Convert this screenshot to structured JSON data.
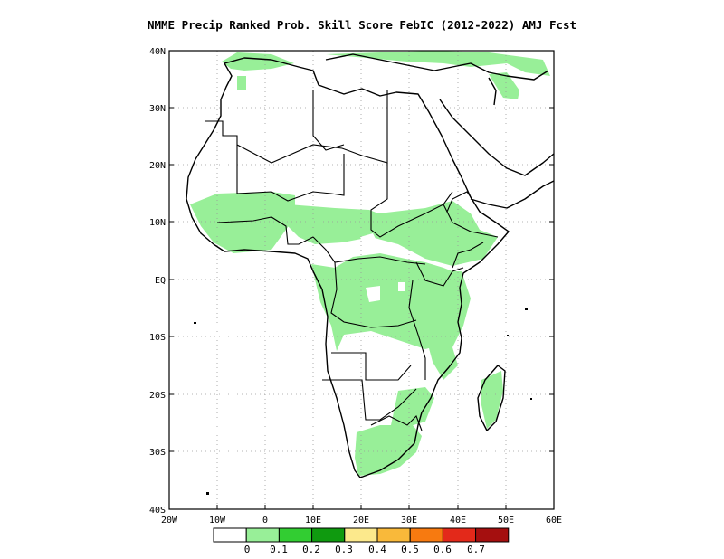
{
  "title": "NMME Precip Ranked Prob. Skill Score FebIC (2012-2022) AMJ Fcst",
  "map": {
    "region": "Africa",
    "lon_range": [
      -20,
      60
    ],
    "lat_range": [
      -40,
      40
    ],
    "grid": true,
    "lat_ticks": [
      "40N",
      "30N",
      "20N",
      "10N",
      "EQ",
      "10S",
      "20S",
      "30S",
      "40S"
    ],
    "lon_ticks": [
      "20W",
      "10W",
      "0",
      "10E",
      "20E",
      "30E",
      "40E",
      "50E",
      "60E"
    ],
    "skill_color": "#98ef98"
  },
  "colorbar": {
    "colors": [
      "#ffffff",
      "#98ef98",
      "#32cd32",
      "#0f9a0f",
      "#fce98c",
      "#f9b93a",
      "#f77a10",
      "#e3291a",
      "#a50f0f"
    ],
    "labels": [
      "0",
      "0.1",
      "0.2",
      "0.3",
      "0.4",
      "0.5",
      "0.6",
      "0.7"
    ]
  }
}
